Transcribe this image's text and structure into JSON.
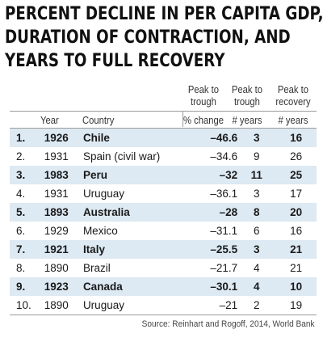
{
  "title_lines": [
    "PERCENT DECLINE IN PER CAPITA GDP,",
    "DURATION OF CONTRACTION, AND",
    "YEARS TO FULL RECOVERY"
  ],
  "headers": {
    "year": "Year",
    "country": "Country",
    "pct_top": [
      "Peak to",
      "trough"
    ],
    "pct_unit": "% change",
    "dur_top": [
      "Peak to",
      "trough"
    ],
    "dur_unit": "# years",
    "rec_top": [
      "Peak to",
      "recovery"
    ],
    "rec_unit": "# years"
  },
  "chart_data": {
    "type": "table",
    "title": "PERCENT DECLINE IN PER CAPITA GDP, DURATION OF CONTRACTION, AND YEARS TO FULL RECOVERY",
    "columns": [
      "Year",
      "Country",
      "Peak to trough % change",
      "Peak to trough # years",
      "Peak to recovery # years"
    ],
    "rows": [
      {
        "rank": "1.",
        "year": "1926",
        "country": "Chile",
        "pct_change": "–46.6",
        "trough_years": "3",
        "recovery_years": "16",
        "highlight": true
      },
      {
        "rank": "2.",
        "year": "1931",
        "country": "Spain (civil war)",
        "pct_change": "–34.6",
        "trough_years": "9",
        "recovery_years": "26",
        "highlight": false
      },
      {
        "rank": "3.",
        "year": "1983",
        "country": "Peru",
        "pct_change": "–32",
        "trough_years": "11",
        "recovery_years": "25",
        "highlight": true
      },
      {
        "rank": "4.",
        "year": "1931",
        "country": "Uruguay",
        "pct_change": "–36.1",
        "trough_years": "3",
        "recovery_years": "17",
        "highlight": false
      },
      {
        "rank": "5.",
        "year": "1893",
        "country": "Australia",
        "pct_change": "–28",
        "trough_years": "8",
        "recovery_years": "20",
        "highlight": true
      },
      {
        "rank": "6.",
        "year": "1929",
        "country": "Mexico",
        "pct_change": "–31.1",
        "trough_years": "6",
        "recovery_years": "16",
        "highlight": false
      },
      {
        "rank": "7.",
        "year": "1921",
        "country": "Italy",
        "pct_change": "–25.5",
        "trough_years": "3",
        "recovery_years": "21",
        "highlight": true
      },
      {
        "rank": "8.",
        "year": "1890",
        "country": "Brazil",
        "pct_change": "–21.7",
        "trough_years": "4",
        "recovery_years": "21",
        "highlight": false
      },
      {
        "rank": "9.",
        "year": "1923",
        "country": "Canada",
        "pct_change": "–30.1",
        "trough_years": "4",
        "recovery_years": "10",
        "highlight": true
      },
      {
        "rank": "10.",
        "year": "1890",
        "country": "Uruguay",
        "pct_change": "–21",
        "trough_years": "2",
        "recovery_years": "19",
        "highlight": false
      }
    ]
  },
  "source": "Source: Reinhart and Rogoff, 2014, World Bank",
  "colors": {
    "row_highlight": "#dde9f3",
    "rule": "#9a9a9a",
    "text": "#1a1a1a"
  }
}
